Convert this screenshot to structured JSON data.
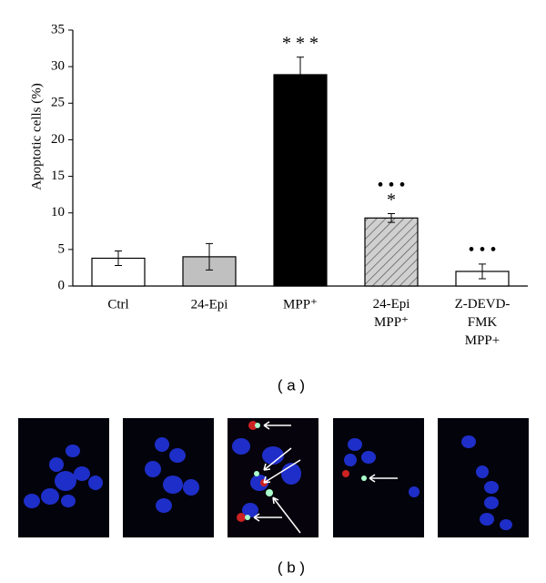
{
  "chart_data": {
    "type": "bar",
    "y_label": "Apoptotic cells (%)",
    "categories": [
      "Ctrl",
      "24-Epi",
      "MPP⁺",
      "24-Epi\nMPP⁺",
      "Z-DEVD-\nFMK\nMPP+"
    ],
    "values": [
      3.8,
      4.0,
      28.9,
      9.3,
      2.0
    ],
    "errors": [
      1.0,
      1.8,
      2.4,
      0.6,
      1.0
    ],
    "significance": [
      null,
      null,
      "* * *",
      "• • •\n*",
      "• • •"
    ],
    "fills": [
      "#ffffff",
      "#c0c0c0",
      "#000000",
      "hatch",
      "#ffffff"
    ],
    "ylim": [
      0,
      35
    ],
    "yticks": [
      0,
      5,
      10,
      15,
      20,
      25,
      30,
      35
    ],
    "grid": false
  },
  "panel_labels": [
    "( a )",
    "( b )"
  ]
}
